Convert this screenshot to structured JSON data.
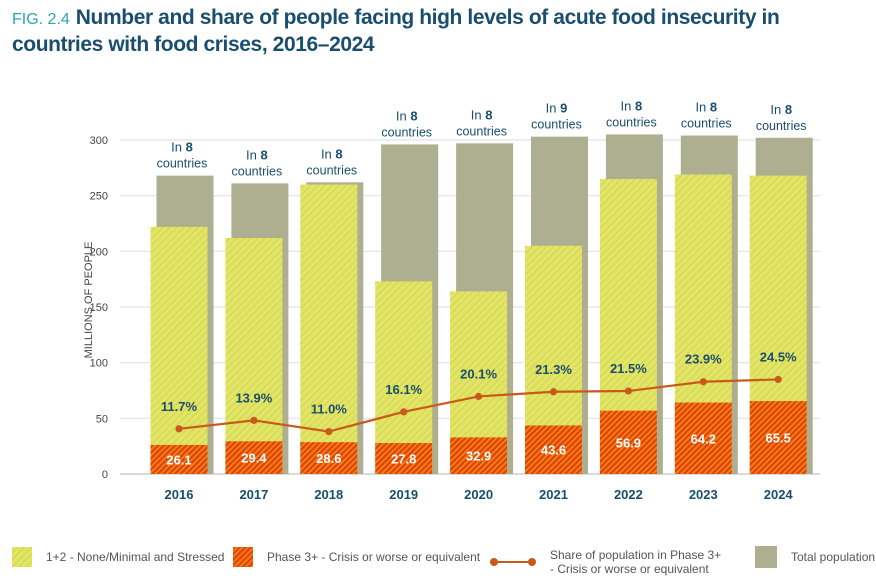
{
  "title": {
    "fig_label": "FIG. 2.4",
    "text": "Number and share of people facing high levels of acute food insecurity in countries with food crises, 2016–2024"
  },
  "colors": {
    "total": "#aeae90",
    "stressed": "#e3e56a",
    "stressed_stripe": "#d8dc52",
    "phase3": "#e2420d",
    "phase3_stripe": "#f07a10",
    "line": "#c85a1a",
    "label_dark": "#1a4e6e",
    "grid": "#e2e2e2"
  },
  "chart_data": {
    "type": "bar",
    "title": "Number and share of people facing high levels of acute food insecurity in countries with food crises, 2016–2024",
    "xlabel": "",
    "ylabel": "MILLIONS OF PEOPLE",
    "ylim": [
      0,
      300
    ],
    "yticks": [
      0,
      50,
      100,
      150,
      200,
      250,
      300
    ],
    "grid": true,
    "legend_position": "bottom",
    "categories": [
      "2016",
      "2017",
      "2018",
      "2019",
      "2020",
      "2021",
      "2022",
      "2023",
      "2024"
    ],
    "country_annotations": [
      {
        "prefix": "In",
        "count": "8",
        "suffix": "countries"
      },
      {
        "prefix": "In",
        "count": "8",
        "suffix": "countries"
      },
      {
        "prefix": "In",
        "count": "8",
        "suffix": "countries"
      },
      {
        "prefix": "In",
        "count": "8",
        "suffix": "countries"
      },
      {
        "prefix": "In",
        "count": "8",
        "suffix": "countries"
      },
      {
        "prefix": "In",
        "count": "9",
        "suffix": "countries"
      },
      {
        "prefix": "In",
        "count": "8",
        "suffix": "countries"
      },
      {
        "prefix": "In",
        "count": "8",
        "suffix": "countries"
      },
      {
        "prefix": "In",
        "count": "8",
        "suffix": "countries"
      }
    ],
    "series": [
      {
        "name": "Total population",
        "type": "bar",
        "values": [
          268,
          261,
          262,
          296,
          297,
          303,
          305,
          304,
          302
        ]
      },
      {
        "name": "1+2 - None/Minimal and Stressed",
        "type": "bar",
        "values": [
          222,
          212,
          260,
          173,
          164,
          205,
          265,
          269,
          268
        ]
      },
      {
        "name": "Phase 3+ - Crisis or worse or equivalent",
        "type": "bar",
        "values": [
          26.1,
          29.4,
          28.6,
          27.8,
          32.9,
          43.6,
          56.9,
          64.2,
          65.5
        ],
        "labels": [
          "26.1",
          "29.4",
          "28.6",
          "27.8",
          "32.9",
          "43.6",
          "56.9",
          "64.2",
          "65.5"
        ]
      },
      {
        "name": "Share of population in Phase 3+ - Crisis or worse or equivalent",
        "type": "line",
        "unit": "%",
        "values": [
          11.7,
          13.9,
          11.0,
          16.1,
          20.1,
          21.3,
          21.5,
          23.9,
          24.5
        ],
        "labels": [
          "11.7%",
          "13.9%",
          "11.0%",
          "16.1%",
          "20.1%",
          "21.3%",
          "21.5%",
          "23.9%",
          "24.5%"
        ]
      }
    ]
  },
  "legend": [
    {
      "key": "stressed",
      "label": "1+2 - None/Minimal and Stressed"
    },
    {
      "key": "phase3",
      "label": "Phase 3+ - Crisis or worse or equivalent"
    },
    {
      "key": "share",
      "label_line1": "Share of population in Phase 3+",
      "label_line2": "- Crisis or worse or equivalent"
    },
    {
      "key": "total",
      "label": "Total population"
    }
  ]
}
